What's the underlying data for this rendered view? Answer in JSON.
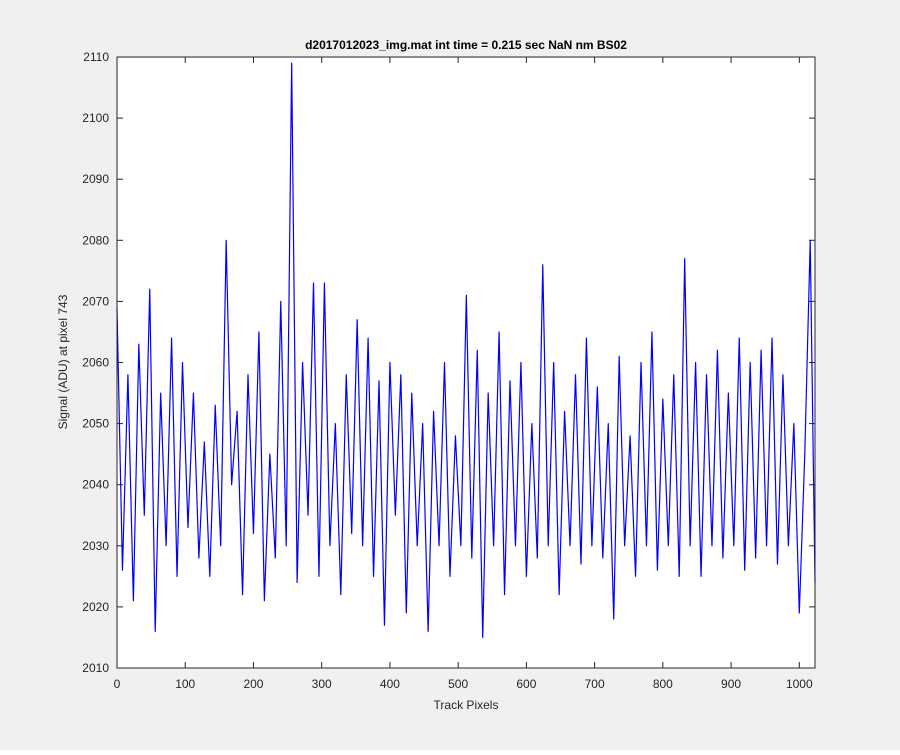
{
  "chart_data": {
    "type": "line",
    "title": "d2017012023_img.mat int time = 0.215 sec  NaN nm BS02",
    "xlabel": "Track Pixels",
    "ylabel": "Signal (ADU) at pixel 743",
    "xlim": [
      0,
      1023
    ],
    "ylim": [
      2010,
      2110
    ],
    "xticks": [
      0,
      100,
      200,
      300,
      400,
      500,
      600,
      700,
      800,
      900,
      1000
    ],
    "yticks": [
      2010,
      2020,
      2030,
      2040,
      2050,
      2060,
      2070,
      2080,
      2090,
      2100,
      2110
    ],
    "x": [
      0,
      8,
      16,
      24,
      32,
      40,
      48,
      56,
      64,
      72,
      80,
      88,
      96,
      104,
      112,
      120,
      128,
      136,
      144,
      152,
      160,
      168,
      176,
      184,
      192,
      200,
      208,
      216,
      224,
      232,
      240,
      248,
      256,
      264,
      272,
      280,
      288,
      296,
      304,
      312,
      320,
      328,
      336,
      344,
      352,
      360,
      368,
      376,
      384,
      392,
      400,
      408,
      416,
      424,
      432,
      440,
      448,
      456,
      464,
      472,
      480,
      488,
      496,
      504,
      512,
      520,
      528,
      536,
      544,
      552,
      560,
      568,
      576,
      584,
      592,
      600,
      608,
      616,
      624,
      632,
      640,
      648,
      656,
      664,
      672,
      680,
      688,
      696,
      704,
      712,
      720,
      728,
      736,
      744,
      752,
      760,
      768,
      776,
      784,
      792,
      800,
      808,
      816,
      824,
      832,
      840,
      848,
      856,
      864,
      872,
      880,
      888,
      896,
      904,
      912,
      920,
      928,
      936,
      944,
      952,
      960,
      968,
      976,
      984,
      992,
      1000,
      1008,
      1016,
      1023
    ],
    "series": [
      {
        "color": "#0000ff",
        "values": [
          2069,
          2026,
          2058,
          2021,
          2063,
          2035,
          2072,
          2016,
          2055,
          2030,
          2064,
          2025,
          2060,
          2033,
          2055,
          2028,
          2047,
          2025,
          2053,
          2030,
          2080,
          2040,
          2052,
          2022,
          2058,
          2032,
          2065,
          2021,
          2045,
          2028,
          2070,
          2030,
          2109,
          2024,
          2060,
          2035,
          2073,
          2025,
          2073,
          2030,
          2050,
          2022,
          2058,
          2032,
          2067,
          2030,
          2064,
          2025,
          2057,
          2017,
          2060,
          2035,
          2058,
          2019,
          2055,
          2030,
          2050,
          2016,
          2052,
          2030,
          2060,
          2025,
          2048,
          2030,
          2071,
          2028,
          2062,
          2015,
          2055,
          2030,
          2065,
          2022,
          2057,
          2030,
          2060,
          2025,
          2050,
          2028,
          2076,
          2030,
          2060,
          2022,
          2052,
          2030,
          2058,
          2027,
          2064,
          2030,
          2056,
          2028,
          2050,
          2018,
          2061,
          2030,
          2048,
          2025,
          2060,
          2030,
          2065,
          2026,
          2054,
          2030,
          2058,
          2025,
          2077,
          2030,
          2060,
          2025,
          2058,
          2030,
          2062,
          2028,
          2055,
          2030,
          2064,
          2026,
          2060,
          2028,
          2062,
          2030,
          2064,
          2027,
          2058,
          2030,
          2050,
          2019,
          2045,
          2080,
          2024
        ]
      }
    ]
  }
}
